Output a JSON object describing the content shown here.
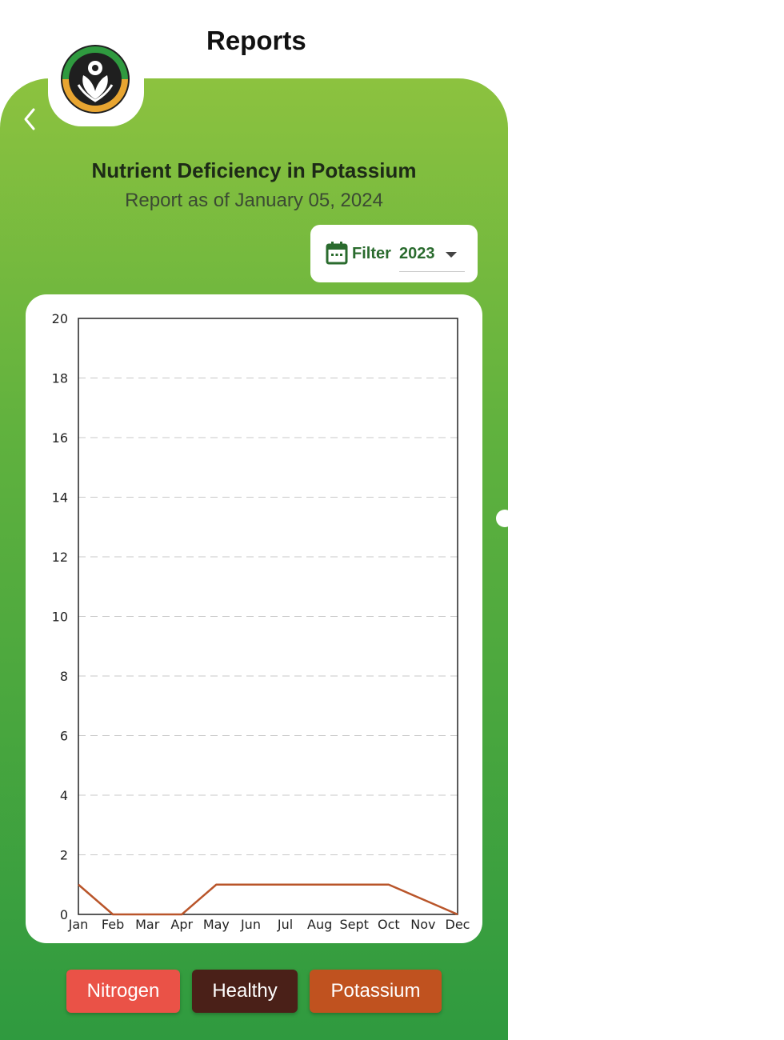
{
  "header": {
    "title": "Reports"
  },
  "icons": {
    "back": "chevron-left-icon",
    "logo": "plant-hands-logo",
    "calendar": "calendar-icon",
    "dropdown": "caret-down-icon"
  },
  "report": {
    "title": "Nutrient Deficiency in Potassium",
    "subtitle": "Report as of January 05, 2024"
  },
  "filter": {
    "label": "Filter",
    "selected_year": "2023"
  },
  "colors": {
    "accent_green": "#2a6b2e",
    "line": "#b9552a",
    "nitrogen": "#ea5247",
    "healthy": "#4a2018",
    "potassium": "#c0521f"
  },
  "legend": {
    "nitrogen": "Nitrogen",
    "healthy": "Healthy",
    "potassium": "Potassium"
  },
  "chart_data": {
    "type": "line",
    "title": "",
    "xlabel": "",
    "ylabel": "",
    "categories": [
      "Jan",
      "Feb",
      "Mar",
      "Apr",
      "May",
      "Jun",
      "Jul",
      "Aug",
      "Sept",
      "Oct",
      "Nov",
      "Dec"
    ],
    "y_ticks": [
      0,
      2,
      4,
      6,
      8,
      10,
      12,
      14,
      16,
      18,
      20
    ],
    "ylim": [
      0,
      20
    ],
    "grid": "horizontal dashed",
    "series": [
      {
        "values": [
          1,
          0,
          0,
          0,
          1,
          1,
          1,
          1,
          1,
          1,
          0.5,
          0
        ],
        "color": "#b9552a"
      }
    ]
  }
}
